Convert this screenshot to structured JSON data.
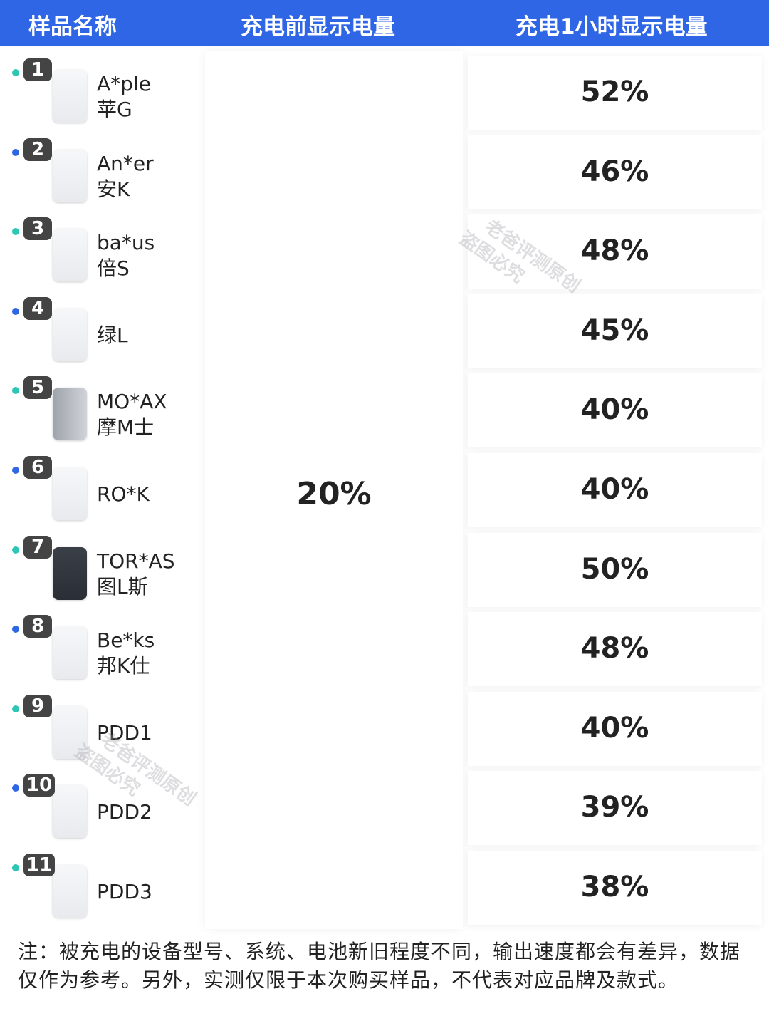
{
  "header": {
    "col1": "样品名称",
    "col2": "充电前显示电量",
    "col3": "充电1小时显示电量"
  },
  "before_value": "20%",
  "rows": [
    {
      "num": "1",
      "name_en": "A*ple",
      "name_cn": "苹G",
      "value": "52%",
      "dot": "#2cc7b4",
      "style": "light"
    },
    {
      "num": "2",
      "name_en": "An*er",
      "name_cn": "安K",
      "value": "46%",
      "dot": "#2f66e6",
      "style": "light"
    },
    {
      "num": "3",
      "name_en": "ba*us",
      "name_cn": "倍S",
      "value": "48%",
      "dot": "#2cc7b4",
      "style": "light"
    },
    {
      "num": "4",
      "name_en": "",
      "name_cn": "绿L",
      "value": "45%",
      "dot": "#2f66e6",
      "style": "light"
    },
    {
      "num": "5",
      "name_en": "MO*AX",
      "name_cn": "摩M士",
      "value": "40%",
      "dot": "#2cc7b4",
      "style": "gray"
    },
    {
      "num": "6",
      "name_en": "RO*K",
      "name_cn": "",
      "value": "40%",
      "dot": "#2f66e6",
      "style": "light"
    },
    {
      "num": "7",
      "name_en": "TOR*AS",
      "name_cn": "图L斯",
      "value": "50%",
      "dot": "#2cc7b4",
      "style": "dark"
    },
    {
      "num": "8",
      "name_en": "Be*ks",
      "name_cn": "邦K仕",
      "value": "48%",
      "dot": "#2f66e6",
      "style": "light"
    },
    {
      "num": "9",
      "name_en": "PDD1",
      "name_cn": "",
      "value": "40%",
      "dot": "#2cc7b4",
      "style": "light"
    },
    {
      "num": "10",
      "name_en": "PDD2",
      "name_cn": "",
      "value": "39%",
      "dot": "#2f66e6",
      "style": "light"
    },
    {
      "num": "11",
      "name_en": "PDD3",
      "name_cn": "",
      "value": "38%",
      "dot": "#2cc7b4",
      "style": "light"
    }
  ],
  "note": "注：被充电的设备型号、系统、电池新旧程度不同，输出速度都会有差异，数据仅作为参考。另外，实测仅限于本次购买样品，不代表对应品牌及款式。",
  "watermark": {
    "line1": "老爸评测原创",
    "line2": "盗图必究"
  },
  "colors": {
    "header": "#2f66e6",
    "dot_teal": "#2cc7b4",
    "dot_blue": "#2f66e6"
  }
}
